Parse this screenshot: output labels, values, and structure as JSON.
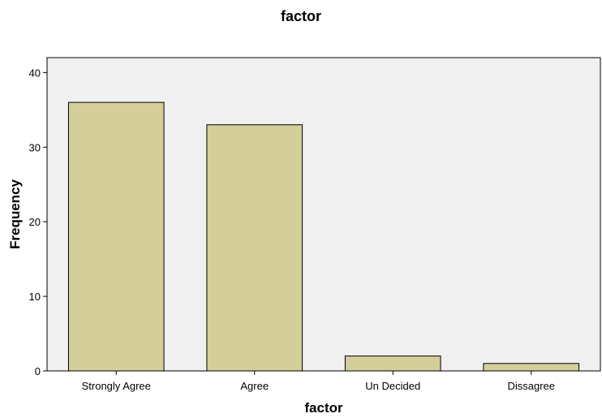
{
  "chart_data": {
    "type": "bar",
    "title": "factor",
    "xlabel": "factor",
    "ylabel": "Frequency",
    "categories": [
      "Strongly Agree",
      "Agree",
      "Un Decided",
      "Dissagree"
    ],
    "values": [
      36,
      33,
      2,
      1
    ],
    "ylim": [
      0,
      42
    ],
    "yticks": [
      0,
      10,
      20,
      30,
      40
    ],
    "grid": false,
    "legend": "none",
    "colors": {
      "bar_fill": "#d3ce9a",
      "bar_stroke": "#000000",
      "plot_background": "#f0f0f0"
    }
  }
}
